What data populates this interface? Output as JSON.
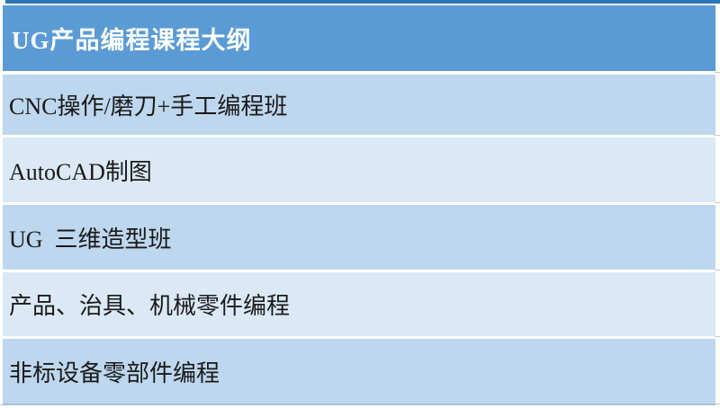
{
  "table": {
    "title": "UG产品编程课程大纲",
    "rows": [
      "CNC操作/磨刀+手工编程班",
      "AutoCAD制图",
      "UG  三维造型班",
      "产品、治具、机械零件编程",
      "非标设备零部件编程"
    ]
  },
  "colors": {
    "top_rule": "#2e75b6",
    "header_fill": "#5b9bd5",
    "header_text": "#ffffff",
    "row_fill_dark": "#bdd7ee",
    "row_fill_light": "#dbe9f6",
    "row_text": "#1a1a1a",
    "bottom_rule": "#a9c0d6"
  }
}
